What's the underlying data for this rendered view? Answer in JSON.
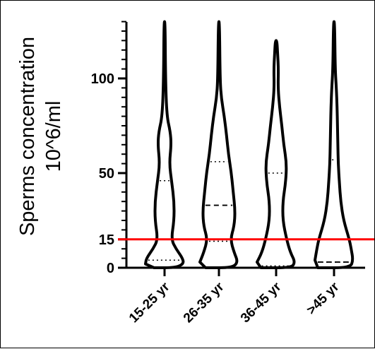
{
  "chart_data": {
    "type": "violin",
    "title": "",
    "ylabel_lines": [
      "Sperms concentration",
      "10^6/ml"
    ],
    "xlabel": "",
    "categories": [
      "15-25 yr",
      "26-35 yr",
      "36-45 yr",
      ">45 yr"
    ],
    "yticks": [
      0,
      15,
      50,
      100
    ],
    "ylim": [
      0,
      130
    ],
    "grid": false,
    "reference_line": {
      "value": 15,
      "color": "#ff0000"
    },
    "series": [
      {
        "category": "15-25 yr",
        "max": 130,
        "median": 15,
        "q1": 4,
        "q3": 46,
        "profile": [
          [
            0,
            0.55
          ],
          [
            2,
            1.0
          ],
          [
            5,
            0.95
          ],
          [
            10,
            0.6
          ],
          [
            15,
            0.35
          ],
          [
            25,
            0.5
          ],
          [
            35,
            0.5
          ],
          [
            45,
            0.38
          ],
          [
            55,
            0.25
          ],
          [
            65,
            0.35
          ],
          [
            72,
            0.3
          ],
          [
            80,
            0.12
          ],
          [
            100,
            0.05
          ],
          [
            130,
            0.03
          ]
        ]
      },
      {
        "category": "26-35 yr",
        "max": 130,
        "median": 33,
        "q1": 14,
        "q3": 56,
        "profile": [
          [
            0,
            0.7
          ],
          [
            3,
            1.0
          ],
          [
            8,
            0.8
          ],
          [
            15,
            0.6
          ],
          [
            22,
            0.8
          ],
          [
            30,
            0.85
          ],
          [
            40,
            0.75
          ],
          [
            50,
            0.65
          ],
          [
            60,
            0.5
          ],
          [
            70,
            0.4
          ],
          [
            80,
            0.28
          ],
          [
            90,
            0.12
          ],
          [
            100,
            0.06
          ],
          [
            130,
            0.03
          ]
        ]
      },
      {
        "category": "36-45 yr",
        "max": 120,
        "median": 15,
        "q1": 1,
        "q3": 50,
        "profile": [
          [
            0,
            0.8
          ],
          [
            3,
            1.0
          ],
          [
            8,
            0.75
          ],
          [
            15,
            0.55
          ],
          [
            25,
            0.35
          ],
          [
            35,
            0.35
          ],
          [
            45,
            0.5
          ],
          [
            55,
            0.55
          ],
          [
            65,
            0.4
          ],
          [
            75,
            0.3
          ],
          [
            85,
            0.18
          ],
          [
            95,
            0.1
          ],
          [
            105,
            0.12
          ],
          [
            113,
            0.08
          ],
          [
            120,
            0.04
          ]
        ]
      },
      {
        "category": ">45 yr",
        "max": 130,
        "median": 3,
        "q1": 3,
        "q3": 57,
        "profile": [
          [
            0,
            0.85
          ],
          [
            4,
            1.0
          ],
          [
            10,
            0.9
          ],
          [
            15,
            0.8
          ],
          [
            25,
            0.5
          ],
          [
            35,
            0.35
          ],
          [
            45,
            0.28
          ],
          [
            55,
            0.22
          ],
          [
            65,
            0.2
          ],
          [
            75,
            0.18
          ],
          [
            85,
            0.16
          ],
          [
            95,
            0.12
          ],
          [
            105,
            0.06
          ],
          [
            130,
            0.03
          ]
        ]
      }
    ]
  }
}
